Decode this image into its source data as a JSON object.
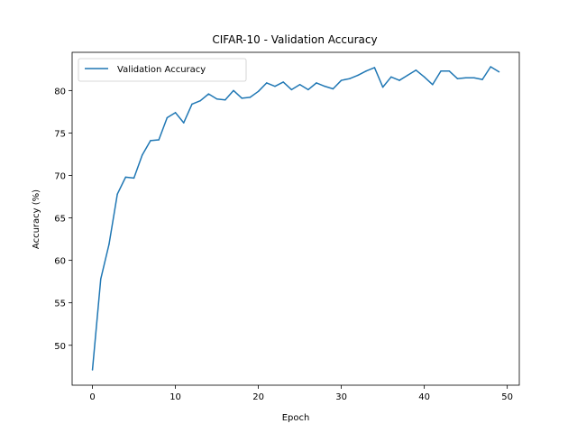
{
  "chart_data": {
    "type": "line",
    "title": "CIFAR-10 - Validation Accuracy",
    "xlabel": "Epoch",
    "ylabel": "Accuracy (%)",
    "xlim": [
      -2.45,
      51.45
    ],
    "ylim": [
      45.3,
      84.5
    ],
    "xticks": [
      0,
      10,
      20,
      30,
      40,
      50
    ],
    "yticks": [
      50,
      55,
      60,
      65,
      70,
      75,
      80
    ],
    "grid": false,
    "legend": "upper-left",
    "x": [
      0,
      1,
      2,
      3,
      4,
      5,
      6,
      7,
      8,
      9,
      10,
      11,
      12,
      13,
      14,
      15,
      16,
      17,
      18,
      19,
      20,
      21,
      22,
      23,
      24,
      25,
      26,
      27,
      28,
      29,
      30,
      31,
      32,
      33,
      34,
      35,
      36,
      37,
      38,
      39,
      40,
      41,
      42,
      43,
      44,
      45,
      46,
      47,
      48,
      49
    ],
    "series": [
      {
        "name": "Validation Accuracy",
        "color": "#1f77b4",
        "values": [
          47.1,
          57.8,
          61.9,
          67.8,
          69.8,
          69.7,
          72.4,
          74.1,
          74.2,
          76.8,
          77.4,
          76.2,
          78.4,
          78.8,
          79.6,
          79.0,
          78.9,
          80.0,
          79.1,
          79.2,
          79.9,
          80.9,
          80.5,
          81.0,
          80.1,
          80.7,
          80.1,
          80.9,
          80.5,
          80.2,
          81.2,
          81.4,
          81.8,
          82.3,
          82.7,
          80.4,
          81.6,
          81.2,
          81.8,
          82.4,
          81.6,
          80.7,
          82.3,
          82.3,
          81.4,
          81.5,
          81.5,
          81.3,
          82.8,
          82.2
        ]
      }
    ]
  }
}
